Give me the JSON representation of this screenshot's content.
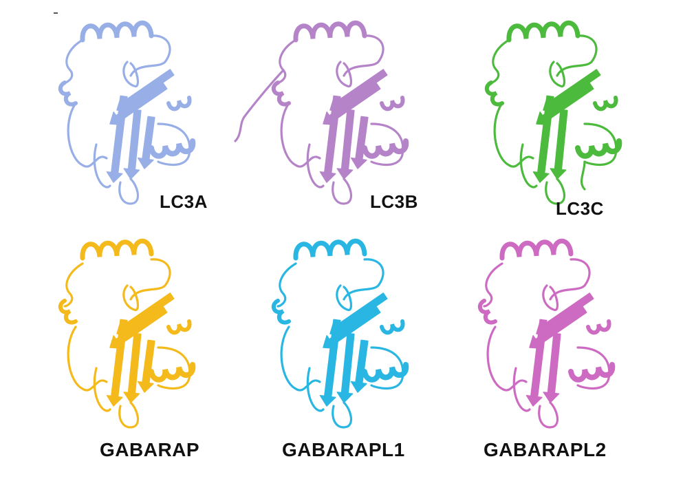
{
  "figure": {
    "panels": [
      {
        "label": "LC3A",
        "color": "#98aee6"
      },
      {
        "label": "LC3B",
        "color": "#b584c8"
      },
      {
        "label": "LC3C",
        "color": "#4cba3c"
      },
      {
        "label": "GABARAP",
        "color": "#f4ba1c"
      },
      {
        "label": "GABARAPL1",
        "color": "#29b6e2"
      },
      {
        "label": "GABARAPL2",
        "color": "#cd6bc2"
      }
    ]
  }
}
